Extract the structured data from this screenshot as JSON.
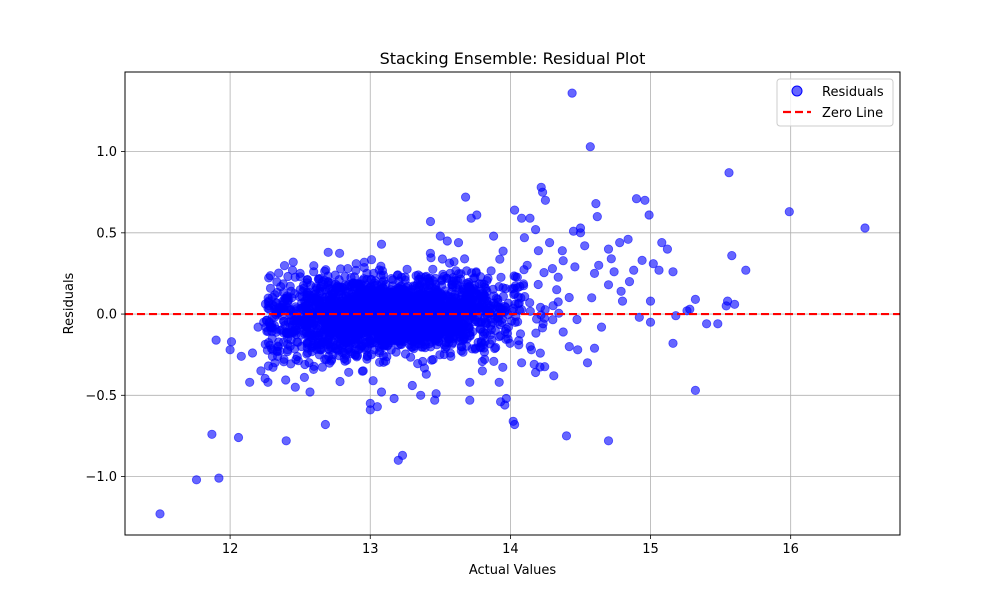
{
  "chart_data": {
    "type": "scatter",
    "title": "Stacking Ensemble: Residual Plot",
    "xlabel": "Actual Values",
    "ylabel": "Residuals",
    "xlim": [
      11.25,
      16.78
    ],
    "ylim": [
      -1.36,
      1.49
    ],
    "xticks": [
      12,
      13,
      14,
      15,
      16
    ],
    "yticks": [
      -1.0,
      -0.5,
      0.0,
      0.5,
      1.0
    ],
    "ytick_labels": [
      "−1.0",
      "−0.5",
      "0.0",
      "0.5",
      "1.0"
    ],
    "grid": true,
    "legend_position": "top-right",
    "point_color": "#0000ff",
    "point_alpha": 0.6,
    "zero_line": {
      "name": "Zero Line",
      "y": 0.0,
      "color": "#ff0000",
      "style": "dashed"
    },
    "series": [
      {
        "name": "Residuals",
        "note_cluster": "dense cluster of ~3000 points centered near x=13.2, y=0, spread x 12.3-14.8, y -0.3-0.3",
        "points": [
          [
            11.5,
            -1.23
          ],
          [
            11.76,
            -1.02
          ],
          [
            11.92,
            -1.01
          ],
          [
            11.87,
            -0.74
          ],
          [
            12.06,
            -0.76
          ],
          [
            12.4,
            -0.78
          ],
          [
            11.9,
            -0.16
          ],
          [
            12.0,
            -0.22
          ],
          [
            12.01,
            -0.17
          ],
          [
            12.08,
            -0.26
          ],
          [
            12.14,
            -0.42
          ],
          [
            12.22,
            -0.35
          ],
          [
            12.27,
            -0.42
          ],
          [
            12.32,
            -0.3
          ],
          [
            12.16,
            -0.24
          ],
          [
            12.2,
            -0.08
          ],
          [
            12.24,
            -0.05
          ],
          [
            12.45,
            0.32
          ],
          [
            12.5,
            0.25
          ],
          [
            12.55,
            0.21
          ],
          [
            12.7,
            0.38
          ],
          [
            12.53,
            -0.39
          ],
          [
            12.57,
            -0.48
          ],
          [
            12.68,
            -0.68
          ],
          [
            12.82,
            -0.29
          ],
          [
            12.9,
            0.31
          ],
          [
            13.0,
            -0.55
          ],
          [
            13.0,
            -0.59
          ],
          [
            13.05,
            -0.57
          ],
          [
            13.08,
            -0.48
          ],
          [
            13.08,
            0.43
          ],
          [
            13.17,
            -0.52
          ],
          [
            13.2,
            -0.9
          ],
          [
            13.23,
            -0.87
          ],
          [
            13.3,
            -0.44
          ],
          [
            13.36,
            -0.5
          ],
          [
            13.4,
            -0.37
          ],
          [
            13.43,
            0.57
          ],
          [
            13.46,
            -0.53
          ],
          [
            13.47,
            -0.49
          ],
          [
            13.5,
            0.48
          ],
          [
            13.55,
            0.45
          ],
          [
            13.63,
            0.44
          ],
          [
            13.68,
            0.72
          ],
          [
            13.71,
            -0.42
          ],
          [
            13.71,
            -0.53
          ],
          [
            13.72,
            0.59
          ],
          [
            13.76,
            0.61
          ],
          [
            13.8,
            -0.35
          ],
          [
            13.88,
            0.48
          ],
          [
            13.92,
            -0.42
          ],
          [
            13.93,
            -0.54
          ],
          [
            13.96,
            -0.56
          ],
          [
            13.97,
            -0.52
          ],
          [
            14.02,
            -0.66
          ],
          [
            14.03,
            -0.68
          ],
          [
            14.03,
            0.64
          ],
          [
            14.08,
            0.59
          ],
          [
            14.1,
            0.47
          ],
          [
            14.14,
            0.59
          ],
          [
            14.18,
            0.52
          ],
          [
            14.22,
            0.78
          ],
          [
            14.23,
            0.75
          ],
          [
            14.25,
            0.7
          ],
          [
            14.17,
            -0.31
          ],
          [
            14.18,
            -0.36
          ],
          [
            14.31,
            -0.38
          ],
          [
            14.4,
            -0.75
          ],
          [
            14.44,
            1.36
          ],
          [
            14.45,
            0.51
          ],
          [
            14.5,
            0.53
          ],
          [
            14.57,
            1.03
          ],
          [
            14.61,
            0.68
          ],
          [
            14.62,
            0.6
          ],
          [
            14.5,
            0.5
          ],
          [
            14.53,
            0.42
          ],
          [
            14.7,
            -0.78
          ],
          [
            14.65,
            -0.08
          ],
          [
            14.7,
            0.4
          ],
          [
            14.78,
            0.44
          ],
          [
            14.84,
            0.46
          ],
          [
            14.88,
            0.27
          ],
          [
            14.9,
            0.71
          ],
          [
            14.94,
            0.33
          ],
          [
            14.96,
            0.7
          ],
          [
            14.99,
            0.61
          ],
          [
            15.0,
            0.08
          ],
          [
            15.02,
            0.31
          ],
          [
            15.06,
            0.27
          ],
          [
            15.08,
            0.44
          ],
          [
            15.12,
            0.4
          ],
          [
            15.16,
            0.26
          ],
          [
            15.16,
            -0.18
          ],
          [
            15.18,
            -0.01
          ],
          [
            15.26,
            0.02
          ],
          [
            15.28,
            0.03
          ],
          [
            15.32,
            0.09
          ],
          [
            15.32,
            -0.47
          ],
          [
            15.4,
            -0.06
          ],
          [
            15.48,
            -0.06
          ],
          [
            15.54,
            0.05
          ],
          [
            15.55,
            0.08
          ],
          [
            15.56,
            0.87
          ],
          [
            15.58,
            0.36
          ],
          [
            15.6,
            0.06
          ],
          [
            15.68,
            0.27
          ],
          [
            15.99,
            0.63
          ],
          [
            16.53,
            0.53
          ],
          [
            14.92,
            -0.02
          ],
          [
            15.0,
            -0.05
          ],
          [
            14.58,
            0.1
          ],
          [
            14.63,
            0.3
          ],
          [
            14.7,
            0.18
          ],
          [
            14.74,
            0.26
          ],
          [
            14.79,
            0.14
          ],
          [
            14.85,
            0.2
          ],
          [
            14.8,
            0.08
          ],
          [
            14.72,
            0.34
          ],
          [
            14.6,
            -0.21
          ],
          [
            14.55,
            -0.3
          ],
          [
            14.48,
            -0.22
          ],
          [
            14.42,
            -0.2
          ],
          [
            14.6,
            0.25
          ],
          [
            14.46,
            0.29
          ],
          [
            14.37,
            0.39
          ],
          [
            14.3,
            0.28
          ],
          [
            14.28,
            0.44
          ],
          [
            14.2,
            0.39
          ],
          [
            14.12,
            0.3
          ],
          [
            14.15,
            -0.22
          ],
          [
            14.08,
            -0.3
          ],
          [
            14.06,
            -0.19
          ],
          [
            12.3,
            -0.15
          ],
          [
            12.36,
            -0.1
          ],
          [
            12.41,
            -0.22
          ],
          [
            12.47,
            -0.28
          ],
          [
            12.44,
            0.1
          ],
          [
            12.5,
            0.15
          ],
          [
            12.6,
            0.12
          ],
          [
            12.62,
            -0.19
          ],
          [
            12.35,
            0.04
          ],
          [
            12.28,
            0.03
          ],
          [
            12.26,
            -0.04
          ],
          [
            12.39,
            0.08
          ],
          [
            12.66,
            0.2
          ],
          [
            12.75,
            0.24
          ],
          [
            12.78,
            -0.22
          ],
          [
            12.84,
            0.28
          ],
          [
            12.95,
            -0.35
          ],
          [
            13.02,
            -0.41
          ]
        ]
      }
    ]
  }
}
